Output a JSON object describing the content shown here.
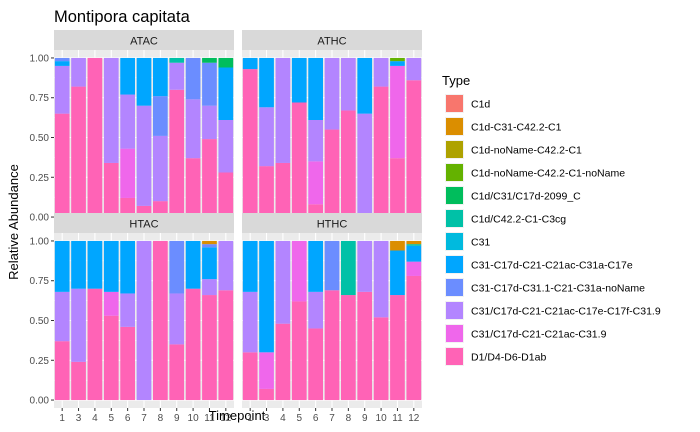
{
  "chart_data": {
    "type": "bar",
    "stacked": true,
    "title": "Montipora capitata",
    "xlabel": "Timepoint",
    "ylabel": "Relative Abundance",
    "ylim": [
      0,
      1
    ],
    "yticks": [
      "0.00",
      "0.25",
      "0.50",
      "0.75",
      "1.00"
    ],
    "categories": [
      "1",
      "3",
      "4",
      "5",
      "6",
      "7",
      "8",
      "9",
      "10",
      "11",
      "12"
    ],
    "legend_title": "Type",
    "legend_position": "right",
    "legend": [
      {
        "name": "C1d",
        "color": "#F8766D"
      },
      {
        "name": "C1d-C31-C42.2-C1",
        "color": "#DB8E00"
      },
      {
        "name": "C1d-noName-C42.2-C1",
        "color": "#AEA200"
      },
      {
        "name": "C1d-noName-C42.2-C1-noName",
        "color": "#64B200"
      },
      {
        "name": "C1d/C31/C17d-2099_C",
        "color": "#00BD5C"
      },
      {
        "name": "C1d/C42.2-C1-C3cg",
        "color": "#00C1A7"
      },
      {
        "name": "C31",
        "color": "#00BADE"
      },
      {
        "name": "C31-C17d-C21-C21ac-C31a-C17e",
        "color": "#00A6FF"
      },
      {
        "name": "C31-C17d-C31.1-C21-C31a-noName",
        "color": "#6B8DFF"
      },
      {
        "name": "C31/C17d-C21-C21ac-C17e-C17f-C31.9",
        "color": "#B385FF"
      },
      {
        "name": "C31/C17d-C21-C21ac-C31.9",
        "color": "#EF67EB"
      },
      {
        "name": "D1/D4-D6-D1ab",
        "color": "#FF63B6"
      }
    ],
    "panels": [
      {
        "label": "ATAC",
        "bars": [
          {
            "x": "1",
            "segments": [
              {
                "type": "D1/D4-D6-D1ab",
                "value": 0.65
              },
              {
                "type": "C31/C17d-C21-C21ac-C17e-C17f-C31.9",
                "value": 0.3
              },
              {
                "type": "C31-C17d-C21-C21ac-C31a-C17e",
                "value": 0.03
              },
              {
                "type": "C31-C17d-C31.1-C21-C31a-noName",
                "value": 0.02
              }
            ]
          },
          {
            "x": "3",
            "segments": [
              {
                "type": "D1/D4-D6-D1ab",
                "value": 0.82
              },
              {
                "type": "C31/C17d-C21-C21ac-C17e-C17f-C31.9",
                "value": 0.18
              }
            ]
          },
          {
            "x": "4",
            "segments": [
              {
                "type": "D1/D4-D6-D1ab",
                "value": 1.0
              }
            ]
          },
          {
            "x": "5",
            "segments": [
              {
                "type": "D1/D4-D6-D1ab",
                "value": 0.34
              },
              {
                "type": "C31/C17d-C21-C21ac-C17e-C17f-C31.9",
                "value": 0.66
              }
            ]
          },
          {
            "x": "6",
            "segments": [
              {
                "type": "D1/D4-D6-D1ab",
                "value": 0.12
              },
              {
                "type": "C31/C17d-C21-C21ac-C31.9",
                "value": 0.31
              },
              {
                "type": "C31/C17d-C21-C21ac-C17e-C17f-C31.9",
                "value": 0.34
              },
              {
                "type": "C31-C17d-C21-C21ac-C31a-C17e",
                "value": 0.23
              }
            ]
          },
          {
            "x": "7",
            "segments": [
              {
                "type": "D1/D4-D6-D1ab",
                "value": 0.07
              },
              {
                "type": "C31/C17d-C21-C21ac-C17e-C17f-C31.9",
                "value": 0.63
              },
              {
                "type": "C31-C17d-C21-C21ac-C31a-C17e",
                "value": 0.3
              }
            ]
          },
          {
            "x": "8",
            "segments": [
              {
                "type": "D1/D4-D6-D1ab",
                "value": 0.1
              },
              {
                "type": "C31/C17d-C21-C21ac-C17e-C17f-C31.9",
                "value": 0.41
              },
              {
                "type": "C31-C17d-C31.1-C21-C31a-noName",
                "value": 0.25
              },
              {
                "type": "C31-C17d-C21-C21ac-C31a-C17e",
                "value": 0.24
              }
            ]
          },
          {
            "x": "9",
            "segments": [
              {
                "type": "D1/D4-D6-D1ab",
                "value": 0.8
              },
              {
                "type": "C31/C17d-C21-C21ac-C17e-C17f-C31.9",
                "value": 0.17
              },
              {
                "type": "C1d/C42.2-C1-C3cg",
                "value": 0.03
              }
            ]
          },
          {
            "x": "10",
            "segments": [
              {
                "type": "D1/D4-D6-D1ab",
                "value": 0.37
              },
              {
                "type": "C31/C17d-C21-C21ac-C17e-C17f-C31.9",
                "value": 0.37
              },
              {
                "type": "C31-C17d-C31.1-C21-C31a-noName",
                "value": 0.26
              }
            ]
          },
          {
            "x": "11",
            "segments": [
              {
                "type": "D1/D4-D6-D1ab",
                "value": 0.49
              },
              {
                "type": "C31/C17d-C21-C21ac-C17e-C17f-C31.9",
                "value": 0.21
              },
              {
                "type": "C31-C17d-C31.1-C21-C31a-noName",
                "value": 0.27
              },
              {
                "type": "C1d/C31/C17d-2099_C",
                "value": 0.03
              }
            ]
          },
          {
            "x": "12",
            "segments": [
              {
                "type": "D1/D4-D6-D1ab",
                "value": 0.28
              },
              {
                "type": "C31/C17d-C21-C21ac-C17e-C17f-C31.9",
                "value": 0.33
              },
              {
                "type": "C31-C17d-C21-C21ac-C31a-C17e",
                "value": 0.33
              },
              {
                "type": "C1d/C31/C17d-2099_C",
                "value": 0.06
              }
            ]
          }
        ]
      },
      {
        "label": "ATHC",
        "bars": [
          {
            "x": "1",
            "segments": [
              {
                "type": "D1/D4-D6-D1ab",
                "value": 0.93
              },
              {
                "type": "C31-C17d-C21-C21ac-C31a-C17e",
                "value": 0.07
              }
            ]
          },
          {
            "x": "3",
            "segments": [
              {
                "type": "D1/D4-D6-D1ab",
                "value": 0.32
              },
              {
                "type": "C31/C17d-C21-C21ac-C17e-C17f-C31.9",
                "value": 0.37
              },
              {
                "type": "C31-C17d-C21-C21ac-C31a-C17e",
                "value": 0.31
              }
            ]
          },
          {
            "x": "4",
            "segments": [
              {
                "type": "D1/D4-D6-D1ab",
                "value": 0.34
              },
              {
                "type": "C31/C17d-C21-C21ac-C17e-C17f-C31.9",
                "value": 0.66
              }
            ]
          },
          {
            "x": "5",
            "segments": [
              {
                "type": "D1/D4-D6-D1ab",
                "value": 0.72
              },
              {
                "type": "C31-C17d-C21-C21ac-C31a-C17e",
                "value": 0.28
              }
            ]
          },
          {
            "x": "6",
            "segments": [
              {
                "type": "D1/D4-D6-D1ab",
                "value": 0.08
              },
              {
                "type": "C31/C17d-C21-C21ac-C31.9",
                "value": 0.27
              },
              {
                "type": "C31/C17d-C21-C21ac-C17e-C17f-C31.9",
                "value": 0.26
              },
              {
                "type": "C31-C17d-C21-C21ac-C31a-C17e",
                "value": 0.39
              }
            ]
          },
          {
            "x": "7",
            "segments": [
              {
                "type": "D1/D4-D6-D1ab",
                "value": 0.55
              },
              {
                "type": "C31/C17d-C21-C21ac-C17e-C17f-C31.9",
                "value": 0.45
              }
            ]
          },
          {
            "x": "8",
            "segments": [
              {
                "type": "D1/D4-D6-D1ab",
                "value": 0.67
              },
              {
                "type": "C31/C17d-C21-C21ac-C17e-C17f-C31.9",
                "value": 0.33
              }
            ]
          },
          {
            "x": "9",
            "segments": [
              {
                "type": "C31/C17d-C21-C21ac-C17e-C17f-C31.9",
                "value": 0.65
              },
              {
                "type": "C31-C17d-C21-C21ac-C31a-C17e",
                "value": 0.35
              }
            ]
          },
          {
            "x": "10",
            "segments": [
              {
                "type": "D1/D4-D6-D1ab",
                "value": 0.82
              },
              {
                "type": "C31/C17d-C21-C21ac-C17e-C17f-C31.9",
                "value": 0.18
              }
            ]
          },
          {
            "x": "11",
            "segments": [
              {
                "type": "D1/D4-D6-D1ab",
                "value": 0.37
              },
              {
                "type": "C31/C17d-C21-C21ac-C31.9",
                "value": 0.58
              },
              {
                "type": "C31-C17d-C21-C21ac-C31a-C17e",
                "value": 0.03
              },
              {
                "type": "C1d-noName-C42.2-C1-noName",
                "value": 0.02
              }
            ]
          },
          {
            "x": "12",
            "segments": [
              {
                "type": "D1/D4-D6-D1ab",
                "value": 0.86
              },
              {
                "type": "C31/C17d-C21-C21ac-C17e-C17f-C31.9",
                "value": 0.14
              }
            ]
          }
        ]
      },
      {
        "label": "HTAC",
        "bars": [
          {
            "x": "1",
            "segments": [
              {
                "type": "D1/D4-D6-D1ab",
                "value": 0.37
              },
              {
                "type": "C31/C17d-C21-C21ac-C17e-C17f-C31.9",
                "value": 0.31
              },
              {
                "type": "C31-C17d-C21-C21ac-C31a-C17e",
                "value": 0.32
              }
            ]
          },
          {
            "x": "3",
            "segments": [
              {
                "type": "D1/D4-D6-D1ab",
                "value": 0.24
              },
              {
                "type": "C31/C17d-C21-C21ac-C17e-C17f-C31.9",
                "value": 0.46
              },
              {
                "type": "C31-C17d-C21-C21ac-C31a-C17e",
                "value": 0.3
              }
            ]
          },
          {
            "x": "4",
            "segments": [
              {
                "type": "D1/D4-D6-D1ab",
                "value": 0.7
              },
              {
                "type": "C31-C17d-C21-C21ac-C31a-C17e",
                "value": 0.3
              }
            ]
          },
          {
            "x": "5",
            "segments": [
              {
                "type": "D1/D4-D6-D1ab",
                "value": 0.53
              },
              {
                "type": "C31/C17d-C21-C21ac-C31.9",
                "value": 0.15
              },
              {
                "type": "C31-C17d-C21-C21ac-C31a-C17e",
                "value": 0.32
              }
            ]
          },
          {
            "x": "6",
            "segments": [
              {
                "type": "D1/D4-D6-D1ab",
                "value": 0.46
              },
              {
                "type": "C31/C17d-C21-C21ac-C17e-C17f-C31.9",
                "value": 0.21
              },
              {
                "type": "C31-C17d-C21-C21ac-C31a-C17e",
                "value": 0.33
              }
            ]
          },
          {
            "x": "7",
            "segments": [
              {
                "type": "C31/C17d-C21-C21ac-C17e-C17f-C31.9",
                "value": 1.0
              }
            ]
          },
          {
            "x": "8",
            "segments": [
              {
                "type": "D1/D4-D6-D1ab",
                "value": 1.0
              }
            ]
          },
          {
            "x": "9",
            "segments": [
              {
                "type": "D1/D4-D6-D1ab",
                "value": 0.35
              },
              {
                "type": "C31/C17d-C21-C21ac-C17e-C17f-C31.9",
                "value": 0.32
              },
              {
                "type": "C31-C17d-C31.1-C21-C31a-noName",
                "value": 0.33
              }
            ]
          },
          {
            "x": "10",
            "segments": [
              {
                "type": "D1/D4-D6-D1ab",
                "value": 0.7
              },
              {
                "type": "C31-C17d-C21-C21ac-C31a-C17e",
                "value": 0.3
              }
            ]
          },
          {
            "x": "11",
            "segments": [
              {
                "type": "D1/D4-D6-D1ab",
                "value": 0.66
              },
              {
                "type": "C31/C17d-C21-C21ac-C17e-C17f-C31.9",
                "value": 0.1
              },
              {
                "type": "C31-C17d-C21-C21ac-C31a-C17e",
                "value": 0.2
              },
              {
                "type": "C31-C17d-C31.1-C21-C31a-noName",
                "value": 0.02
              },
              {
                "type": "C1d-C31-C42.2-C1",
                "value": 0.02
              }
            ]
          },
          {
            "x": "12",
            "segments": [
              {
                "type": "D1/D4-D6-D1ab",
                "value": 0.69
              },
              {
                "type": "C31/C17d-C21-C21ac-C17e-C17f-C31.9",
                "value": 0.31
              }
            ]
          }
        ]
      },
      {
        "label": "HTHC",
        "bars": [
          {
            "x": "1",
            "segments": [
              {
                "type": "D1/D4-D6-D1ab",
                "value": 0.3
              },
              {
                "type": "C31/C17d-C21-C21ac-C17e-C17f-C31.9",
                "value": 0.38
              },
              {
                "type": "C31-C17d-C21-C21ac-C31a-C17e",
                "value": 0.32
              }
            ]
          },
          {
            "x": "3",
            "segments": [
              {
                "type": "D1/D4-D6-D1ab",
                "value": 0.07
              },
              {
                "type": "C31/C17d-C21-C21ac-C31.9",
                "value": 0.23
              },
              {
                "type": "C31-C17d-C21-C21ac-C31a-C17e",
                "value": 0.7
              }
            ]
          },
          {
            "x": "4",
            "segments": [
              {
                "type": "D1/D4-D6-D1ab",
                "value": 0.48
              },
              {
                "type": "C31/C17d-C21-C21ac-C17e-C17f-C31.9",
                "value": 0.52
              }
            ]
          },
          {
            "x": "5",
            "segments": [
              {
                "type": "D1/D4-D6-D1ab",
                "value": 0.62
              },
              {
                "type": "C31/C17d-C21-C21ac-C31.9",
                "value": 0.38
              }
            ]
          },
          {
            "x": "6",
            "segments": [
              {
                "type": "D1/D4-D6-D1ab",
                "value": 0.45
              },
              {
                "type": "C31/C17d-C21-C21ac-C17e-C17f-C31.9",
                "value": 0.23
              },
              {
                "type": "C31-C17d-C21-C21ac-C31a-C17e",
                "value": 0.32
              }
            ]
          },
          {
            "x": "7",
            "segments": [
              {
                "type": "D1/D4-D6-D1ab",
                "value": 0.69
              },
              {
                "type": "C31-C17d-C31.1-C21-C31a-noName",
                "value": 0.31
              }
            ]
          },
          {
            "x": "8",
            "segments": [
              {
                "type": "D1/D4-D6-D1ab",
                "value": 0.66
              },
              {
                "type": "C1d/C42.2-C1-C3cg",
                "value": 0.34
              }
            ]
          },
          {
            "x": "9",
            "segments": [
              {
                "type": "D1/D4-D6-D1ab",
                "value": 0.68
              },
              {
                "type": "C31/C17d-C21-C21ac-C17e-C17f-C31.9",
                "value": 0.32
              }
            ]
          },
          {
            "x": "10",
            "segments": [
              {
                "type": "D1/D4-D6-D1ab",
                "value": 0.52
              },
              {
                "type": "C31/C17d-C21-C21ac-C17e-C17f-C31.9",
                "value": 0.48
              }
            ]
          },
          {
            "x": "11",
            "segments": [
              {
                "type": "D1/D4-D6-D1ab",
                "value": 0.66
              },
              {
                "type": "C31-C17d-C21-C21ac-C31a-C17e",
                "value": 0.28
              },
              {
                "type": "C1d-C31-C42.2-C1",
                "value": 0.06
              }
            ]
          },
          {
            "x": "12",
            "segments": [
              {
                "type": "D1/D4-D6-D1ab",
                "value": 0.78
              },
              {
                "type": "C31/C17d-C21-C21ac-C31.9",
                "value": 0.09
              },
              {
                "type": "C31-C17d-C21-C21ac-C31a-C17e",
                "value": 0.1
              },
              {
                "type": "C1d/C42.2-C1-C3cg",
                "value": 0.01
              },
              {
                "type": "C1d-C31-C42.2-C1",
                "value": 0.02
              }
            ]
          }
        ]
      }
    ]
  }
}
